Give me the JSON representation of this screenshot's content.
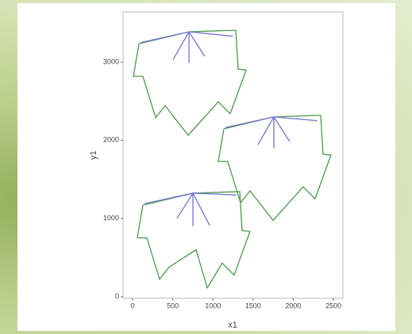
{
  "chart_data": {
    "type": "line",
    "xlabel": "x1",
    "ylabel": "y1",
    "xlim": [
      -119,
      2619
    ],
    "ylim": [
      -20,
      3641
    ],
    "xticks": [
      0,
      500,
      1000,
      1500,
      2000,
      2500
    ],
    "yticks": [
      0,
      1000,
      2000,
      3000
    ],
    "series": [
      {
        "color": "#4c9a4c",
        "x": [
          79,
          702,
          1285,
          1314,
          1413,
          1215,
          1067,
          692,
          405,
          287,
          128,
          10,
          79
        ],
        "y": [
          3234,
          3387,
          3407,
          2909,
          2898,
          2339,
          2492,
          2064,
          2441,
          2288,
          2817,
          2817,
          3234
        ]
      },
      {
        "color": "#4c9a4c",
        "x": [
          1136,
          1759,
          2342,
          2371,
          2470,
          2272,
          2124,
          1749,
          1462,
          1344,
          1185,
          1067,
          1136
        ],
        "y": [
          2146,
          2299,
          2319,
          1821,
          1810,
          1251,
          1404,
          976,
          1353,
          1200,
          1729,
          1729,
          2146
        ]
      },
      {
        "color": "#4c9a4c",
        "x": [
          128,
          751,
          1334,
          1363,
          1462,
          1264,
          1116,
          930,
          790,
          454,
          336,
          177,
          59,
          128
        ],
        "y": [
          1170,
          1323,
          1343,
          845,
          834,
          275,
          428,
          112,
          600,
          377,
          224,
          753,
          753,
          1170
        ]
      },
      {
        "color": "#7373d6",
        "x": [
          702,
          504,
          null,
          702,
          702,
          null,
          702,
          899,
          null,
          702,
          100,
          null,
          702,
          1250
        ],
        "y": [
          3387,
          3031,
          null,
          3387,
          2990,
          null,
          3387,
          3071,
          null,
          3387,
          3250,
          null,
          3387,
          3330
        ]
      },
      {
        "color": "#7373d6",
        "x": [
          1759,
          1561,
          null,
          1759,
          1759,
          null,
          1759,
          1956,
          null,
          1759,
          1157,
          null,
          1759,
          2300
        ],
        "y": [
          2299,
          1943,
          null,
          2299,
          1902,
          null,
          2299,
          1983,
          null,
          2299,
          2162,
          null,
          2299,
          2250
        ]
      },
      {
        "color": "#7373d6",
        "x": [
          751,
          553,
          null,
          751,
          751,
          null,
          751,
          960,
          null,
          751,
          150,
          null,
          751,
          1290
        ],
        "y": [
          1323,
          1000,
          null,
          1323,
          900,
          null,
          1323,
          910,
          null,
          1323,
          1190,
          null,
          1323,
          1300
        ]
      }
    ]
  }
}
